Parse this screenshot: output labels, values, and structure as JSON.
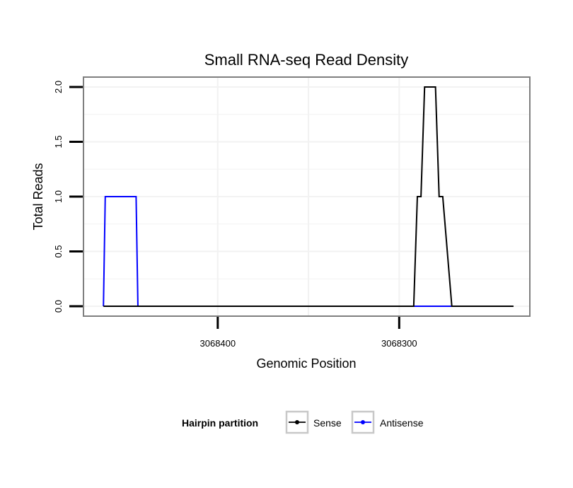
{
  "chart_data": {
    "type": "line",
    "title": "Small RNA-seq Read Density",
    "xlabel": "Genomic Position",
    "ylabel": "Total Reads",
    "x_reversed": true,
    "xlim": [
      3068474,
      3068228
    ],
    "ylim": [
      -0.09,
      2.09
    ],
    "x_ticks": [
      3068400,
      3068300
    ],
    "x_tick_labels": [
      "3068400",
      "3068300"
    ],
    "y_ticks": [
      0,
      0.5,
      1,
      1.5,
      2
    ],
    "y_tick_labels": [
      "0.0",
      "0.5",
      "1.0",
      "1.5",
      "2.0"
    ],
    "grid": true,
    "legend": {
      "title": "Hairpin partition",
      "position": "bottom",
      "entries": [
        "Sense",
        "Antisense"
      ]
    },
    "series": [
      {
        "name": "Sense",
        "color": "#000000",
        "x": [
          3068463,
          3068292,
          3068290,
          3068288,
          3068286,
          3068280,
          3068278,
          3068276,
          3068271,
          3068269,
          3068237
        ],
        "y": [
          0,
          0,
          1,
          1,
          2,
          2,
          1,
          1,
          0,
          0,
          0
        ]
      },
      {
        "name": "Antisense",
        "color": "#0000ff",
        "x": [
          3068463,
          3068462,
          3068445,
          3068444,
          3068292,
          3068269
        ],
        "y": [
          0,
          1,
          1,
          0,
          0,
          0
        ]
      }
    ]
  }
}
